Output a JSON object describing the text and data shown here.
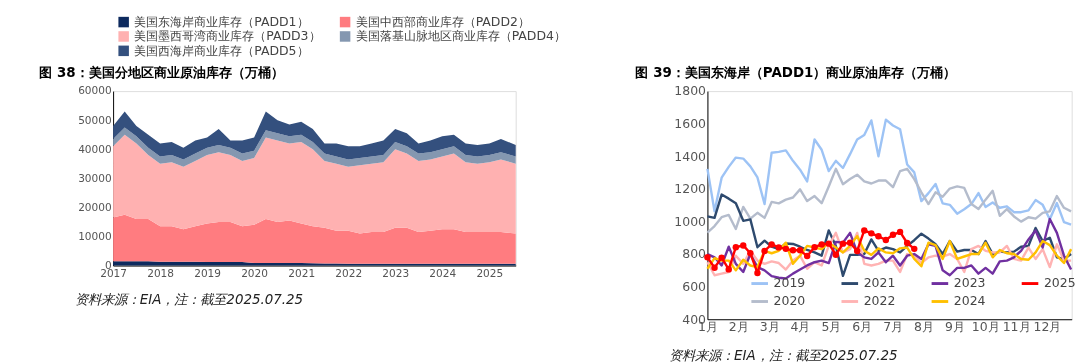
{
  "chart_data": [
    {
      "type": "area",
      "title": "图 38：美国分地区商业原油库存（万桶）",
      "stacked": true,
      "legend": "top",
      "grid": false,
      "annotations": [
        "资料来源：EIA，注：截至2025.07.25"
      ],
      "x": [
        "2017-01",
        "2017-04",
        "2017-07",
        "2017-10",
        "2018-01",
        "2018-04",
        "2018-07",
        "2018-10",
        "2019-01",
        "2019-04",
        "2019-07",
        "2019-10",
        "2020-01",
        "2020-04",
        "2020-07",
        "2020-10",
        "2021-01",
        "2021-04",
        "2021-07",
        "2021-10",
        "2022-01",
        "2022-04",
        "2022-07",
        "2022-10",
        "2023-01",
        "2023-04",
        "2023-07",
        "2023-10",
        "2024-01",
        "2024-04",
        "2024-07",
        "2024-10",
        "2025-01",
        "2025-04",
        "2025-07-25"
      ],
      "xlim": [
        "2017-01-01",
        "2025-07-25"
      ],
      "xticks": [
        {
          "value": "2017",
          "label": "2017"
        },
        {
          "value": "2018",
          "label": "2018"
        },
        {
          "value": "2019",
          "label": "2019"
        },
        {
          "value": "2020",
          "label": "2020"
        },
        {
          "value": "2021",
          "label": "2021"
        },
        {
          "value": "2022",
          "label": "2022"
        },
        {
          "value": "2023",
          "label": "2023"
        },
        {
          "value": "2024",
          "label": "2024"
        },
        {
          "value": "2025",
          "label": "2025"
        }
      ],
      "ylim": [
        0,
        60000
      ],
      "yticks": [
        0,
        10000,
        20000,
        30000,
        40000,
        50000,
        60000
      ],
      "series": [
        {
          "name": "美国东海岸商业库存（PADD1）",
          "color": "#0d2a5e",
          "values": [
            1500,
            1500,
            1500,
            1500,
            1300,
            1300,
            1300,
            1300,
            1200,
            1200,
            1200,
            1200,
            900,
            900,
            900,
            900,
            900,
            800,
            700,
            700,
            600,
            600,
            600,
            600,
            600,
            600,
            600,
            600,
            600,
            600,
            600,
            600,
            600,
            600,
            600
          ]
        },
        {
          "name": "美国中西部商业库存（PADD2）",
          "color": "#ff7c80",
          "values": [
            15000,
            16000,
            14500,
            14500,
            12200,
            12200,
            11200,
            12200,
            13300,
            13800,
            13800,
            12300,
            13100,
            15100,
            14100,
            14600,
            13600,
            12700,
            12300,
            11300,
            11400,
            10400,
            10900,
            10900,
            12400,
            12400,
            10900,
            11400,
            11900,
            11900,
            10900,
            10900,
            10900,
            10900,
            10400
          ]
        },
        {
          "name": "美国墨西哥湾商业库存（PADD3）",
          "color": "#ffb1b1",
          "values": [
            24500,
            27500,
            26000,
            22000,
            21500,
            22000,
            21500,
            22500,
            23500,
            24000,
            23000,
            22500,
            23000,
            28000,
            28000,
            26500,
            28000,
            26500,
            23000,
            23000,
            22000,
            23500,
            23500,
            24000,
            27000,
            25500,
            24500,
            24500,
            25000,
            26000,
            24000,
            23500,
            24000,
            25000,
            24000
          ]
        },
        {
          "name": "美国落基山脉地区商业库存（PADD4）",
          "color": "#8497b0",
          "values": [
            2500,
            2500,
            2500,
            2500,
            2500,
            2500,
            2500,
            2500,
            2500,
            2500,
            2500,
            2500,
            2500,
            2500,
            2500,
            2500,
            2500,
            2500,
            2500,
            2500,
            2500,
            2500,
            2500,
            2500,
            2500,
            2500,
            2500,
            2500,
            2500,
            2500,
            2500,
            2500,
            2500,
            2500,
            2500
          ]
        },
        {
          "name": "美国西海岸商业库存（PADD5）",
          "color": "#34507e",
          "values": [
            4500,
            5500,
            3500,
            4500,
            4500,
            4500,
            4000,
            4500,
            3500,
            5500,
            2500,
            4500,
            4500,
            6500,
            4500,
            4000,
            4500,
            4500,
            3500,
            4500,
            4500,
            4000,
            4500,
            5000,
            4500,
            4500,
            3500,
            4000,
            4500,
            4000,
            4000,
            4000,
            4000,
            4500,
            4000
          ]
        }
      ]
    },
    {
      "type": "line",
      "title": "图 39：美国东海岸（PADD1）商业原油库存（万桶）",
      "legend": "bottom",
      "grid": false,
      "line_style": "solid",
      "annotations": [
        "资料来源：EIA，注：截至2025.07.25"
      ],
      "x": [
        1.0,
        1.23,
        1.46,
        1.69,
        1.92,
        2.16,
        2.39,
        2.62,
        2.85,
        3.08,
        3.31,
        3.54,
        3.77,
        4.0,
        4.23,
        4.47,
        4.7,
        4.93,
        5.16,
        5.39,
        5.62,
        5.85,
        6.08,
        6.31,
        6.54,
        6.78,
        7.01,
        7.24,
        7.47,
        7.7,
        7.93,
        8.16,
        8.39,
        8.62,
        8.85,
        9.09,
        9.32,
        9.55,
        9.78,
        10.01,
        10.24,
        10.47,
        10.7,
        10.93,
        11.16,
        11.4,
        11.63,
        11.86,
        12.09,
        12.32,
        12.55,
        12.78
      ],
      "xlim": [
        1,
        12.8
      ],
      "xticks": [
        {
          "value": 1,
          "label": "1月"
        },
        {
          "value": 2,
          "label": "2月"
        },
        {
          "value": 3,
          "label": "3月"
        },
        {
          "value": 4,
          "label": "4月"
        },
        {
          "value": 5,
          "label": "5月"
        },
        {
          "value": 6,
          "label": "6月"
        },
        {
          "value": 7,
          "label": "7月"
        },
        {
          "value": 8,
          "label": "8月"
        },
        {
          "value": 9,
          "label": "9月"
        },
        {
          "value": 10,
          "label": "10月"
        },
        {
          "value": 11,
          "label": "11月"
        },
        {
          "value": 12,
          "label": "12月"
        }
      ],
      "ylim": [
        400,
        1800
      ],
      "yticks": [
        400,
        600,
        800,
        1000,
        1200,
        1400,
        1600,
        1800
      ],
      "series": [
        {
          "name": "2019",
          "color": "#9dc3f5",
          "values": [
            1323,
            1062,
            1269,
            1335,
            1392,
            1386,
            1338,
            1270,
            1107,
            1422,
            1427,
            1436,
            1372,
            1318,
            1246,
            1503,
            1440,
            1309,
            1372,
            1328,
            1413,
            1503,
            1530,
            1620,
            1400,
            1625,
            1589,
            1566,
            1350,
            1301,
            1125,
            1174,
            1230,
            1111,
            1102,
            1048,
            1075,
            1107,
            1174,
            1089,
            1116,
            1084,
            1093,
            1057,
            1057,
            1068,
            1131,
            1102,
            1014,
            1113,
            996,
            981
          ]
        },
        {
          "name": "2020",
          "color": "#b4bccc",
          "values": [
            932,
            972,
            1026,
            1040,
            954,
            1089,
            1017,
            1053,
            1022,
            1120,
            1111,
            1134,
            1147,
            1197,
            1125,
            1156,
            1112,
            1215,
            1323,
            1229,
            1260,
            1287,
            1246,
            1233,
            1251,
            1251,
            1210,
            1309,
            1323,
            1260,
            1179,
            1107,
            1179,
            1152,
            1202,
            1215,
            1206,
            1107,
            1076,
            1134,
            1188,
            1035,
            1076,
            1031,
            999,
            1026,
            1017,
            1053,
            1062,
            1156,
            1084,
            1062
          ]
        },
        {
          "name": "2021",
          "color": "#2e4a6e",
          "values": [
            1031,
            1022,
            1165,
            1140,
            1112,
            1004,
            1013,
            842,
            882,
            845,
            830,
            865,
            862,
            845,
            825,
            810,
            790,
            945,
            850,
            666,
            795,
            795,
            800,
            890,
            820,
            840,
            830,
            810,
            850,
            885,
            925,
            895,
            860,
            800,
            880,
            815,
            825,
            825,
            800,
            880,
            800,
            815,
            810,
            815,
            845,
            850,
            960,
            880,
            900,
            780,
            770,
            800
          ]
        },
        {
          "name": "2022",
          "color": "#ffb3b3",
          "values": [
            750,
            670,
            680,
            690,
            790,
            740,
            820,
            760,
            740,
            755,
            745,
            705,
            760,
            790,
            710,
            750,
            730,
            850,
            930,
            810,
            830,
            930,
            740,
            730,
            740,
            760,
            760,
            690,
            800,
            790,
            745,
            780,
            790,
            785,
            800,
            770,
            690,
            830,
            850,
            820,
            810,
            810,
            850,
            770,
            760,
            840,
            770,
            830,
            720,
            860,
            760,
            760
          ]
        },
        {
          "name": "2023",
          "color": "#7030a0",
          "values": [
            800,
            780,
            730,
            845,
            740,
            690,
            800,
            720,
            700,
            665,
            655,
            650,
            680,
            705,
            730,
            750,
            760,
            745,
            875,
            870,
            930,
            810,
            780,
            770,
            810,
            750,
            790,
            730,
            790,
            800,
            770,
            860,
            850,
            700,
            670,
            715,
            715,
            730,
            680,
            715,
            680,
            755,
            760,
            780,
            820,
            890,
            945,
            840,
            1015,
            930,
            790,
            705
          ]
        },
        {
          "name": "2024",
          "color": "#ffc000",
          "values": [
            710,
            775,
            760,
            760,
            700,
            765,
            730,
            720,
            820,
            805,
            820,
            870,
            740,
            790,
            850,
            840,
            830,
            870,
            840,
            810,
            850,
            910,
            820,
            795,
            835,
            810,
            805,
            835,
            840,
            770,
            725,
            870,
            855,
            770,
            880,
            770,
            785,
            800,
            800,
            870,
            780,
            825,
            805,
            800,
            770,
            765,
            810,
            880,
            855,
            790,
            745,
            830
          ]
        },
        {
          "name": "2025",
          "color": "#ff0000",
          "marker": "circle",
          "x": [
            1.0,
            1.23,
            1.46,
            1.69,
            1.92,
            2.16,
            2.39,
            2.62,
            2.85,
            3.08,
            3.31,
            3.54,
            3.77,
            4.0,
            4.23,
            4.47,
            4.7,
            4.93,
            5.16,
            5.39,
            5.62,
            5.85,
            6.08,
            6.31,
            6.54,
            6.78,
            7.01,
            7.24,
            7.47,
            7.7
          ],
          "values": [
            780,
            716,
            778,
            706,
            842,
            853,
            805,
            684,
            819,
            859,
            841,
            832,
            823,
            823,
            788,
            842,
            859,
            864,
            796,
            864,
            869,
            819,
            945,
            927,
            909,
            886,
            918,
            936,
            868,
            832
          ]
        }
      ]
    }
  ]
}
